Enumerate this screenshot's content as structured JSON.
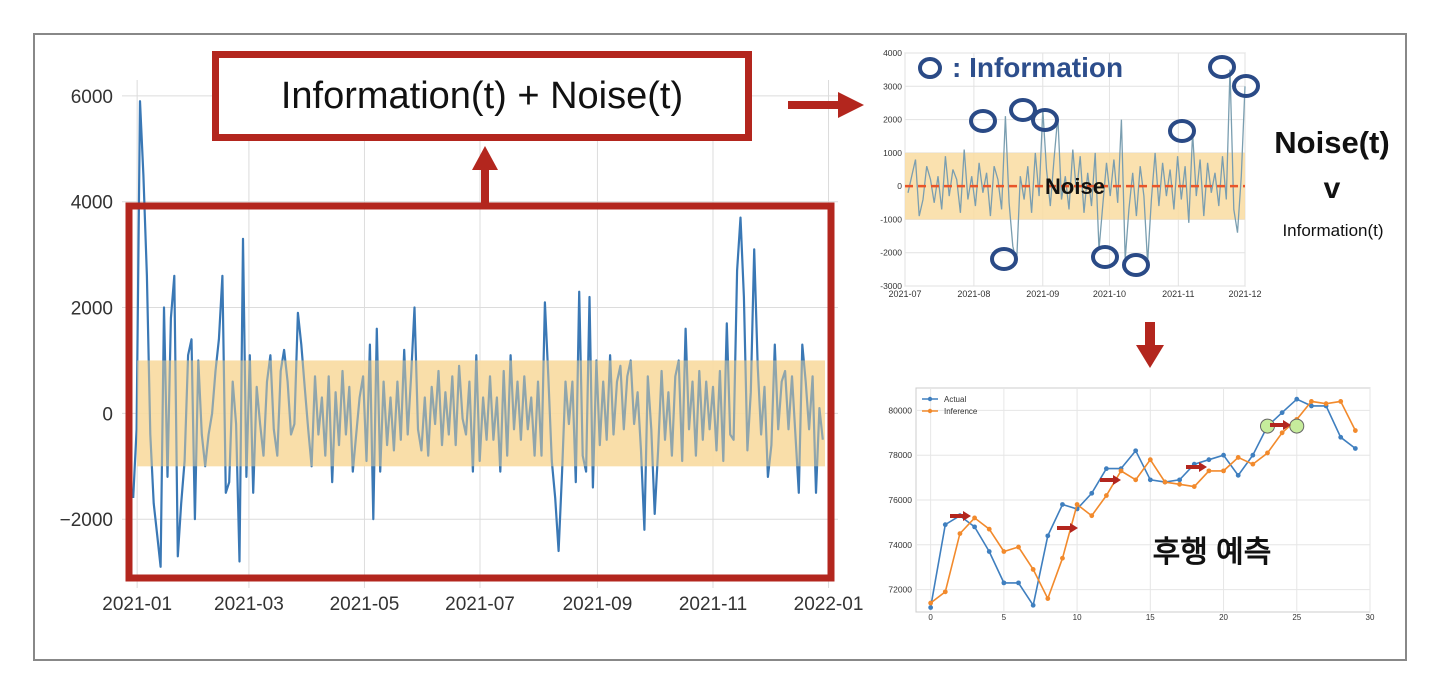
{
  "labels": {
    "main_box": "Information(t) + Noise(t)",
    "legend_info": ": Information",
    "noise_band": "Noise",
    "noise_t": "Noise(t)",
    "comparison": "v",
    "information_t": "Information(t)",
    "lag_prediction": "후행 예측"
  },
  "colors": {
    "series": "#3a78b5",
    "noise_band": "#f9dca1",
    "annotation_red": "#b3261e",
    "circle": "#2a4a86",
    "inference": "#f28a2c",
    "highlight_point": "#c6ec9c"
  },
  "chart_data": [
    {
      "type": "line",
      "title": "",
      "xlabel": "",
      "ylabel": "",
      "x_ticks": [
        "2021-01",
        "2021-03",
        "2021-05",
        "2021-07",
        "2021-09",
        "2021-11",
        "2022-01"
      ],
      "y_ticks": [
        "6000",
        "4000",
        "2000",
        "0",
        "−2000"
      ],
      "ylim": [
        -3300,
        6300
      ],
      "xlim": [
        "2020-12-24",
        "2022-01-06"
      ],
      "grid": true,
      "noise_band": [
        -1000,
        1000
      ],
      "series": [
        {
          "values": [
            -1600,
            -300,
            5900,
            4500,
            2600,
            -400,
            -1700,
            -2300,
            -2900,
            2000,
            -1200,
            1800,
            2600,
            -2700,
            -1700,
            -900,
            1100,
            1400,
            -2000,
            1000,
            -400,
            -1000,
            -400,
            0,
            800,
            1400,
            2600,
            -1500,
            -1300,
            600,
            -200,
            -2800,
            3300,
            -1200,
            1100,
            -1500,
            500,
            -200,
            -800,
            600,
            1100,
            -300,
            -800,
            800,
            1200,
            600,
            -400,
            -200,
            1900,
            1300,
            500,
            -300,
            -1000,
            700,
            -400,
            300,
            -800,
            700,
            -1300,
            400,
            -600,
            800,
            -400,
            500,
            -1100,
            -400,
            300,
            700,
            -900,
            1300,
            -2000,
            1600,
            -1100,
            600,
            -600,
            300,
            -700,
            600,
            -500,
            1200,
            -400,
            700,
            2000,
            -300,
            -700,
            300,
            -800,
            500,
            -200,
            800,
            -600,
            400,
            -400,
            700,
            -600,
            900,
            -100,
            -400,
            600,
            -1100,
            1100,
            -900,
            300,
            -500,
            700,
            -500,
            300,
            -1100,
            800,
            -800,
            1100,
            -300,
            600,
            -500,
            700,
            -300,
            300,
            -800,
            600,
            -800,
            2100,
            700,
            -900,
            -1600,
            -2600,
            -1100,
            600,
            -200,
            600,
            -1300,
            2300,
            -800,
            -1100,
            2200,
            -1400,
            1000,
            -600,
            600,
            -500,
            1100,
            -400,
            600,
            900,
            -300,
            700,
            1000,
            -200,
            400,
            -700,
            -2200,
            700,
            -300,
            -1900,
            -700,
            800,
            -500,
            400,
            -800,
            700,
            1000,
            -900,
            1600,
            -300,
            600,
            -800,
            800,
            -500,
            600,
            -300,
            500,
            -700,
            800,
            -900,
            1700,
            -400,
            -500,
            2700,
            3700,
            2200,
            -700,
            400,
            3100,
            900,
            -400,
            500,
            -1200,
            -600,
            1300,
            -300,
            600,
            800,
            -300,
            700,
            -400,
            -1500,
            1300,
            600,
            -300,
            700,
            -1500,
            100,
            -500
          ]
        }
      ]
    },
    {
      "type": "line",
      "title": "",
      "x_ticks": [
        "2021-07",
        "2021-08",
        "2021-09",
        "2021-10",
        "2021-11",
        "2021-12"
      ],
      "y_ticks": [
        "4000",
        "3000",
        "2000",
        "1000",
        "0",
        "-1000",
        "-2000",
        "-3000"
      ],
      "ylim": [
        -3000,
        4000
      ],
      "xlim": [
        "2021-07-01",
        "2021-12-01"
      ],
      "grid": true,
      "mean_line": 0,
      "noise_band": [
        -1000,
        1000
      ],
      "series": [
        {
          "values": [
            -200,
            300,
            800,
            -900,
            -400,
            600,
            200,
            -500,
            300,
            -700,
            900,
            -300,
            500,
            200,
            -800,
            1100,
            -400,
            300,
            -600,
            700,
            -200,
            400,
            -900,
            600,
            200,
            -700,
            2100,
            -500,
            -1800,
            -2300,
            300,
            -400,
            600,
            -800,
            1000,
            -300,
            2300,
            500,
            -600,
            800,
            2100,
            -400,
            300,
            -700,
            1100,
            -200,
            900,
            -800,
            400,
            -600,
            1000,
            -1900,
            -600,
            700,
            -300,
            800,
            -500,
            2000,
            -2200,
            -700,
            400,
            -900,
            600,
            -300,
            -2300,
            -400,
            1000,
            -600,
            700,
            -300,
            500,
            -700,
            900,
            -400,
            600,
            -1100,
            1600,
            -300,
            800,
            -900,
            700,
            -200,
            400,
            -600,
            900,
            -400,
            3500,
            -700,
            -1400,
            300,
            3000
          ]
        }
      ]
    },
    {
      "type": "line",
      "title": "",
      "x_ticks": [
        "0",
        "5",
        "10",
        "15",
        "20",
        "25",
        "30"
      ],
      "y_ticks": [
        "80000",
        "78000",
        "76000",
        "74000",
        "72000"
      ],
      "xlim": [
        -1,
        30
      ],
      "ylim": [
        71000,
        81000
      ],
      "grid": true,
      "legend": "top-left",
      "series": [
        {
          "name": "Actual",
          "values": [
            71200,
            74900,
            75300,
            74800,
            73700,
            72300,
            72300,
            71300,
            74400,
            75800,
            75600,
            76300,
            77400,
            77400,
            78200,
            76900,
            76800,
            76900,
            77600,
            77800,
            78000,
            77100,
            78000,
            79300,
            79900,
            80500,
            80200,
            80200,
            78800,
            78300
          ]
        },
        {
          "name": "Inference",
          "values": [
            71400,
            71900,
            74500,
            75200,
            74700,
            73700,
            73900,
            72900,
            71600,
            73400,
            75800,
            75300,
            76200,
            77300,
            76900,
            77800,
            76800,
            76700,
            76600,
            77300,
            77300,
            77900,
            77600,
            78100,
            79000,
            79600,
            80400,
            80300,
            80400,
            79100
          ]
        }
      ],
      "highlight_points": [
        [
          23,
          79300
        ],
        [
          25,
          79300
        ]
      ]
    }
  ]
}
